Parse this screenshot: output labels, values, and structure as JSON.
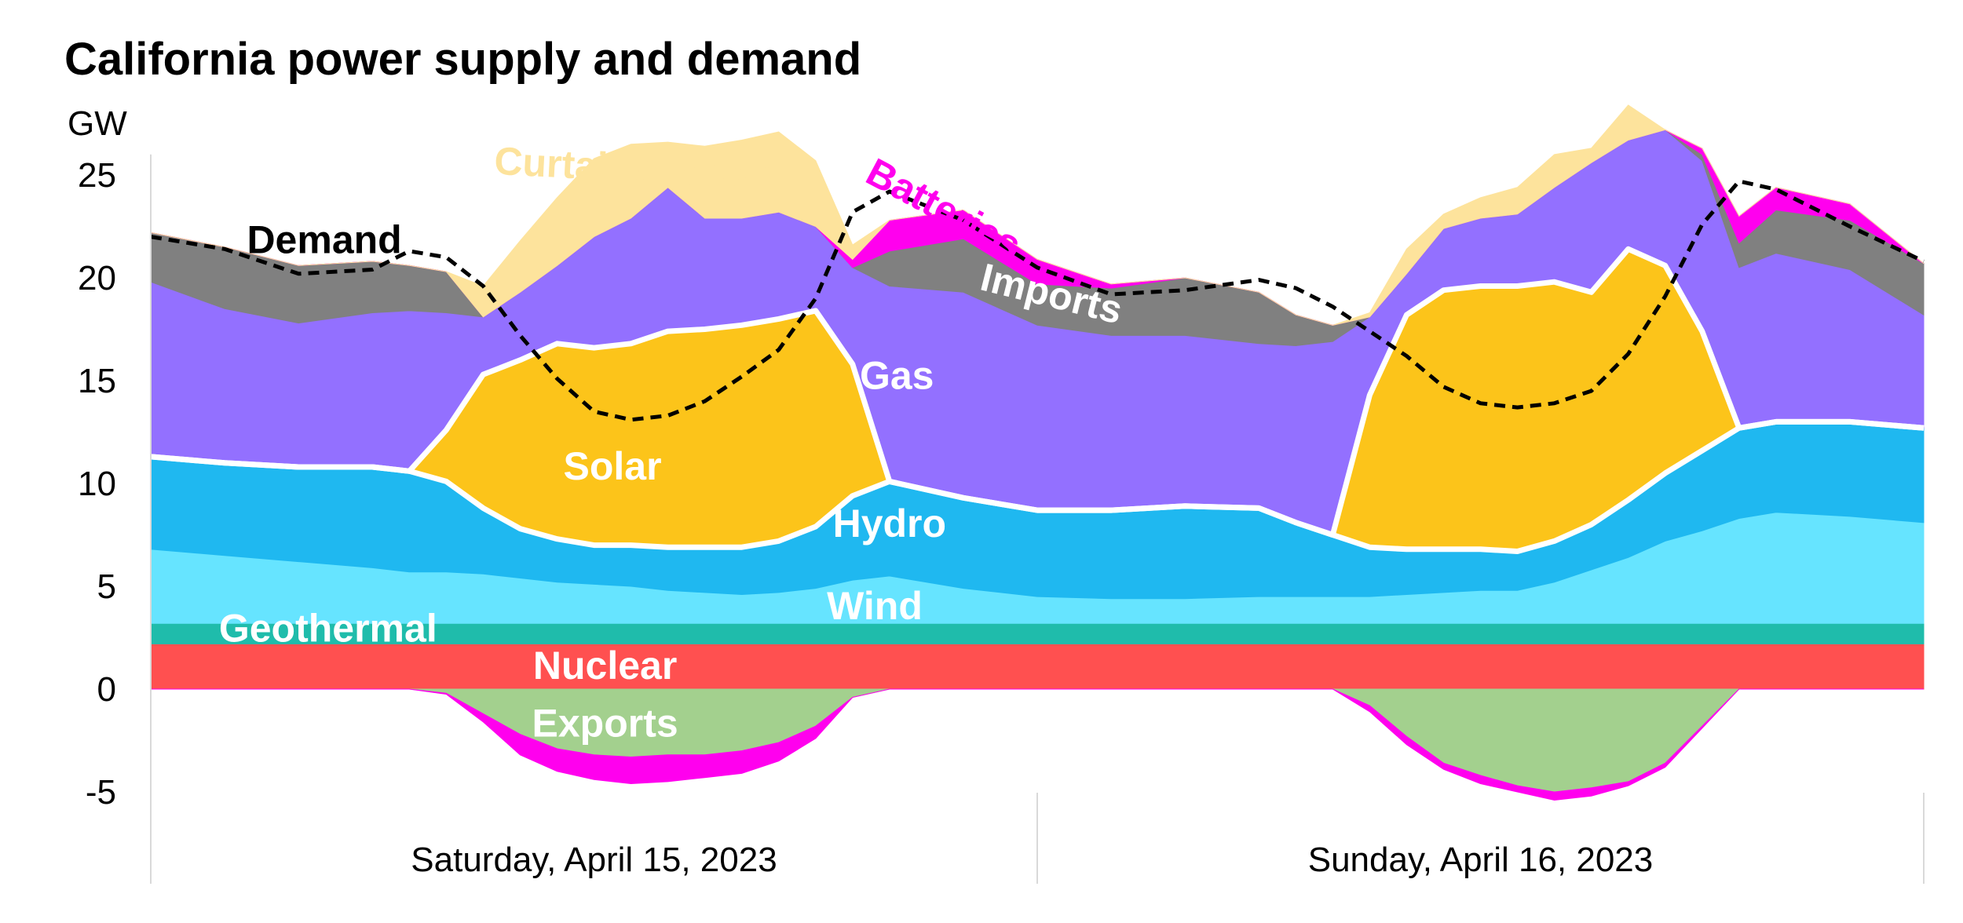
{
  "chart_data": {
    "type": "area",
    "title": "California power supply and demand",
    "ylabel": "GW",
    "xlabel": "",
    "ylim": [
      -7,
      26
    ],
    "yticks": [
      25,
      20,
      15,
      10,
      5,
      0,
      -5
    ],
    "ytick_labels": [
      "25",
      "20",
      "15",
      "10",
      "5",
      "0",
      "-5"
    ],
    "day_labels": [
      "Saturday, April 15, 2023",
      "Sunday, April 16, 2023"
    ],
    "hours": [
      0,
      2,
      4,
      6,
      7,
      8,
      9,
      10,
      11,
      12,
      13,
      14,
      15,
      16,
      17,
      18,
      19,
      20,
      22,
      24,
      26,
      28,
      30,
      31,
      32,
      33,
      34,
      35,
      36,
      37,
      38,
      39,
      40,
      41,
      42,
      43,
      44,
      46,
      48
    ],
    "stack_order": [
      "Nuclear",
      "Geothermal",
      "Wind",
      "Hydro",
      "Solar",
      "Gas",
      "Imports",
      "Batteries",
      "Curtailed solar"
    ],
    "series": [
      {
        "name": "Nuclear",
        "color": "#ff5050",
        "label_color": "#ffffff",
        "values": [
          2.2,
          2.2,
          2.2,
          2.2,
          2.2,
          2.2,
          2.2,
          2.2,
          2.2,
          2.2,
          2.2,
          2.2,
          2.2,
          2.2,
          2.2,
          2.2,
          2.2,
          2.2,
          2.2,
          2.2,
          2.2,
          2.2,
          2.2,
          2.2,
          2.2,
          2.2,
          2.2,
          2.2,
          2.2,
          2.2,
          2.2,
          2.2,
          2.2,
          2.2,
          2.2,
          2.2,
          2.2,
          2.2,
          2.2
        ]
      },
      {
        "name": "Geothermal",
        "color": "#1fbcab",
        "label_color": "#ffffff",
        "values": [
          1,
          1,
          1,
          1,
          1,
          1,
          1,
          1,
          1,
          1,
          1,
          1,
          1,
          1,
          1,
          1,
          1,
          1,
          1,
          1,
          1,
          1,
          1,
          1,
          1,
          1,
          1,
          1,
          1,
          1,
          1,
          1,
          1,
          1,
          1,
          1,
          1,
          1,
          1
        ]
      },
      {
        "name": "Wind",
        "color": "#66e4ff",
        "label_color": "#ffffff",
        "values": [
          3.6,
          3.3,
          3,
          2.7,
          2.5,
          2.5,
          2.4,
          2.2,
          2,
          1.9,
          1.8,
          1.6,
          1.5,
          1.4,
          1.5,
          1.7,
          2.1,
          2.3,
          1.7,
          1.3,
          1.2,
          1.2,
          1.3,
          1.3,
          1.3,
          1.3,
          1.4,
          1.5,
          1.6,
          1.6,
          2,
          2.6,
          3.2,
          4,
          4.5,
          5.1,
          5.4,
          5.2,
          4.9
        ]
      },
      {
        "name": "Hydro",
        "color": "#1fb8f0",
        "label_color": "#ffffff",
        "values": [
          4.5,
          4.5,
          4.6,
          4.9,
          4.9,
          4.4,
          3.2,
          2.4,
          2.1,
          1.9,
          2,
          2.1,
          2.2,
          2.3,
          2.5,
          3,
          4.1,
          4.6,
          4.4,
          4.2,
          4.3,
          4.5,
          4.3,
          3.6,
          3,
          2.4,
          2.2,
          2.1,
          2,
          1.9,
          2,
          2.2,
          2.8,
          3.3,
          3.9,
          4.4,
          4.4,
          4.6,
          4.6
        ]
      },
      {
        "name": "Solar",
        "color": "#fcc41a",
        "label_color": "#ffffff",
        "values": [
          0,
          0,
          0,
          0,
          0,
          2.5,
          6.5,
          8.2,
          9.5,
          9.6,
          9.8,
          10.5,
          10.6,
          10.8,
          10.8,
          10.5,
          6.4,
          0,
          0,
          0,
          0,
          0,
          0,
          0,
          0,
          7.4,
          11.4,
          12.6,
          12.8,
          12.9,
          12.6,
          11.3,
          12.2,
          10.1,
          5.8,
          0,
          0,
          0,
          0
        ]
      },
      {
        "name": "Gas",
        "color": "#9370ff",
        "label_color": "#ffffff",
        "values": [
          8.5,
          7.5,
          7,
          7.5,
          7.8,
          5.7,
          2.8,
          3.3,
          3.8,
          5.4,
          6.1,
          7,
          5.4,
          5.2,
          5.2,
          4.1,
          4.7,
          9.5,
          10,
          9,
          8.5,
          8.3,
          8,
          8.6,
          9.4,
          3.8,
          2,
          3,
          3.3,
          3.5,
          4.6,
          6.3,
          5.3,
          6.6,
          8.3,
          7.8,
          8.2,
          7.4,
          5.5
        ]
      },
      {
        "name": "Imports",
        "color": "#808080",
        "label_color": "#ffffff",
        "values": [
          2.4,
          3,
          2.8,
          2.5,
          2.2,
          2,
          0,
          0,
          0,
          0,
          0,
          0,
          0,
          0,
          0,
          0,
          0,
          1.7,
          2.6,
          2,
          2.3,
          2.8,
          2.5,
          1.5,
          0.8,
          0,
          0,
          0,
          0,
          0,
          0,
          0,
          0,
          0,
          0.3,
          1.2,
          2.1,
          2.4,
          2.5
        ]
      },
      {
        "name": "Batteries",
        "color": "#ff00ee",
        "label_color": "#ff00ee",
        "values": [
          0,
          0,
          0,
          0,
          0,
          0,
          0,
          0,
          0,
          0,
          0,
          0,
          0,
          0,
          0,
          0,
          0.4,
          1.5,
          1.4,
          1.2,
          0.2,
          0,
          0,
          0,
          0,
          0,
          0,
          0,
          0,
          0,
          0,
          0,
          0,
          0,
          0.3,
          1.3,
          1.1,
          0.8,
          0
        ]
      },
      {
        "name": "Curtailed solar",
        "color": "#fde39c",
        "label_color": "#fde39c",
        "values": [
          0,
          0,
          0,
          0,
          0,
          0,
          1.5,
          2.5,
          3.3,
          3.8,
          3.6,
          2.2,
          3.5,
          3.8,
          3.9,
          3.2,
          0.7,
          0,
          0,
          0,
          0,
          0,
          0,
          0,
          0,
          0.2,
          1.2,
          0.7,
          1,
          1.3,
          1.6,
          0.7,
          1.7,
          0,
          0,
          0,
          0,
          0,
          0
        ]
      },
      {
        "name": "Exports",
        "color": "#a3d08e",
        "label_color": "#ffffff",
        "values": [
          0,
          0,
          0,
          0,
          0,
          -0.2,
          -1.2,
          -2.2,
          -2.9,
          -3.2,
          -3.3,
          -3.2,
          -3.2,
          -3,
          -2.6,
          -1.8,
          -0.4,
          0,
          0,
          0,
          0,
          0,
          0,
          0,
          0,
          -0.8,
          -2.3,
          -3.6,
          -4.2,
          -4.7,
          -5,
          -4.8,
          -4.5,
          -3.6,
          -1.8,
          0,
          0,
          0,
          0
        ]
      },
      {
        "name": "Battery charging",
        "color": "#ff00ee",
        "values": [
          0,
          0,
          0,
          0,
          0,
          -0.05,
          -0.4,
          -1,
          -1.1,
          -1.2,
          -1.3,
          -1.3,
          -1.1,
          -1.1,
          -0.9,
          -0.6,
          0,
          0,
          0,
          0,
          0,
          0,
          0,
          0,
          0,
          -0.3,
          -0.4,
          -0.3,
          -0.4,
          -0.3,
          -0.4,
          -0.4,
          -0.2,
          -0.2,
          -0.1,
          0,
          0,
          0,
          0
        ]
      }
    ],
    "demand": {
      "name": "Demand",
      "color": "#000000",
      "values": [
        22,
        21.4,
        20.2,
        20.4,
        21.3,
        21,
        19.6,
        17.2,
        15.1,
        13.5,
        13.1,
        13.3,
        14,
        15.2,
        16.5,
        19,
        23.2,
        24.2,
        22.8,
        20.5,
        19.2,
        19.4,
        19.9,
        19.5,
        18.6,
        17.4,
        16.2,
        14.7,
        13.9,
        13.7,
        13.9,
        14.5,
        16.3,
        19.1,
        22.6,
        24.7,
        24.3,
        22.5,
        20.8
      ]
    },
    "annotations": [
      {
        "text": "Curtailed solar",
        "color": "#fde39c",
        "x": 13,
        "y": 24.7,
        "rotate": 3
      },
      {
        "text": "Batteries",
        "color": "#ff00ee",
        "x": 21.3,
        "y": 22.8,
        "rotate": 28
      },
      {
        "text": "Demand",
        "color": "#000000",
        "x": 4.7,
        "y": 21.2,
        "rotate": 0
      },
      {
        "text": "Imports",
        "color": "#ffffff",
        "x": 24.3,
        "y": 18.6,
        "rotate": 14
      },
      {
        "text": "Gas",
        "color": "#ffffff",
        "x": 20.2,
        "y": 14.6,
        "rotate": 0
      },
      {
        "text": "Solar",
        "color": "#ffffff",
        "x": 12.5,
        "y": 10.2,
        "rotate": 0
      },
      {
        "text": "Hydro",
        "color": "#ffffff",
        "x": 20,
        "y": 7.4,
        "rotate": 0
      },
      {
        "text": "Wind",
        "color": "#ffffff",
        "x": 19.6,
        "y": 3.4,
        "rotate": 0
      },
      {
        "text": "Geothermal",
        "color": "#ffffff",
        "x": 4.8,
        "y": 2.3,
        "rotate": 0
      },
      {
        "text": "Nuclear",
        "color": "#ffffff",
        "x": 12.3,
        "y": 0.5,
        "rotate": 0
      },
      {
        "text": "Exports",
        "color": "#ffffff",
        "x": 12.3,
        "y": -2.3,
        "rotate": 0
      }
    ]
  }
}
